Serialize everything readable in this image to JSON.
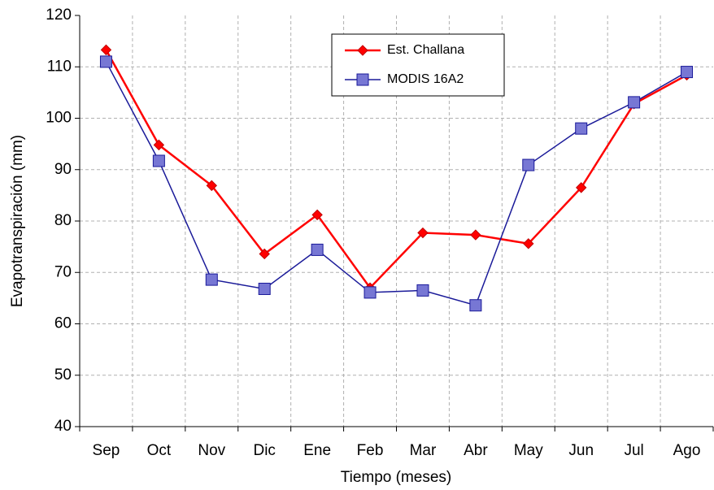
{
  "chart_data": {
    "type": "line",
    "x_label": "Tiempo (meses)",
    "y_label": "Evapotranspiración (mm)",
    "categories": [
      "Sep",
      "Oct",
      "Nov",
      "Dic",
      "Ene",
      "Feb",
      "Mar",
      "Abr",
      "May",
      "Jun",
      "Jul",
      "Ago"
    ],
    "series": [
      {
        "name": "Est. Challana",
        "color": "#ff0000",
        "marker": "diamond",
        "values": [
          113.3,
          94.8,
          86.9,
          73.6,
          81.2,
          67.0,
          77.7,
          77.3,
          75.6,
          86.5,
          102.8,
          108.4
        ]
      },
      {
        "name": "MODIS 16A2",
        "color": "#1a1a99",
        "marker": "square",
        "values": [
          111.0,
          91.7,
          68.6,
          66.8,
          74.4,
          66.1,
          66.5,
          63.6,
          90.9,
          98.0,
          103.1,
          109.0
        ]
      }
    ],
    "ylim": [
      40,
      120
    ],
    "yticks": [
      40,
      50,
      60,
      70,
      80,
      90,
      100,
      110,
      120
    ],
    "grid": true,
    "legend": "upper center"
  }
}
